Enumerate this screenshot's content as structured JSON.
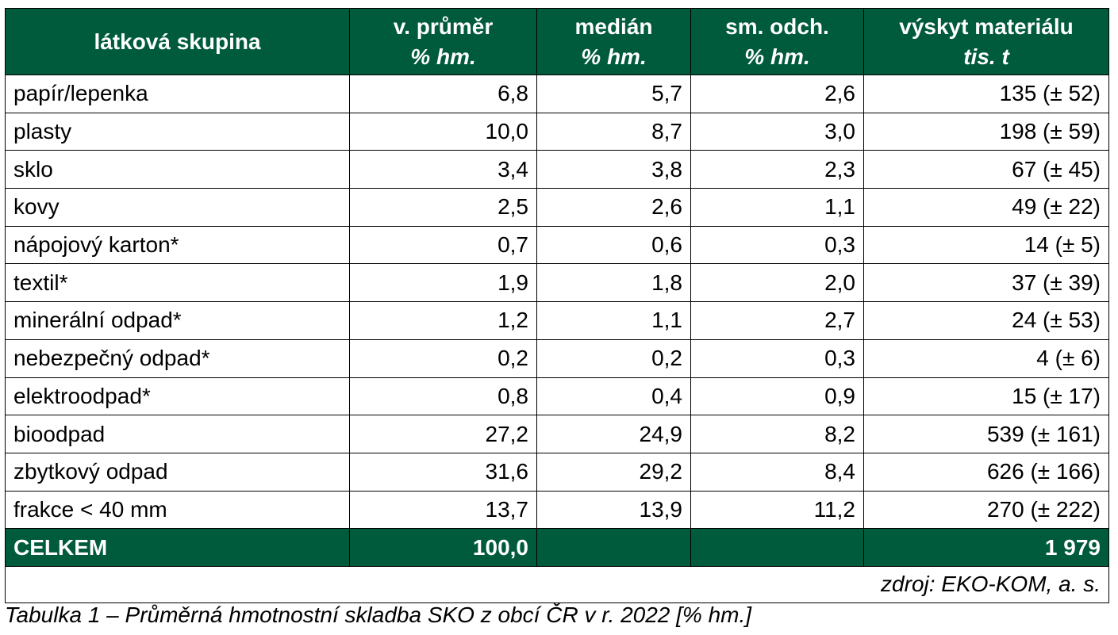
{
  "table": {
    "headers": [
      {
        "title": "látková skupina",
        "unit": ""
      },
      {
        "title": "v. průměr",
        "unit": "% hm."
      },
      {
        "title": "medián",
        "unit": "% hm."
      },
      {
        "title": "sm. odch.",
        "unit": "% hm."
      },
      {
        "title": "výskyt materiálu",
        "unit": "tis. t"
      }
    ],
    "rows": [
      [
        "papír/lepenka",
        "6,8",
        "5,7",
        "2,6",
        "135 (± 52)"
      ],
      [
        "plasty",
        "10,0",
        "8,7",
        "3,0",
        "198 (± 59)"
      ],
      [
        "sklo",
        "3,4",
        "3,8",
        "2,3",
        "67 (± 45)"
      ],
      [
        "kovy",
        "2,5",
        "2,6",
        "1,1",
        "49 (± 22)"
      ],
      [
        "nápojový karton*",
        "0,7",
        "0,6",
        "0,3",
        "14 (± 5)"
      ],
      [
        "textil*",
        "1,9",
        "1,8",
        "2,0",
        "37 (± 39)"
      ],
      [
        "minerální odpad*",
        "1,2",
        "1,1",
        "2,7",
        "24 (± 53)"
      ],
      [
        "nebezpečný odpad*",
        "0,2",
        "0,2",
        "0,3",
        "4 (± 6)"
      ],
      [
        "elektroodpad*",
        "0,8",
        "0,4",
        "0,9",
        "15 (± 17)"
      ],
      [
        "bioodpad",
        "27,2",
        "24,9",
        "8,2",
        "539 (± 161)"
      ],
      [
        "zbytkový odpad",
        "31,6",
        "29,2",
        "8,4",
        "626 (± 166)"
      ],
      [
        "frakce < 40 mm",
        "13,7",
        "13,9",
        "11,2",
        "270 (± 222)"
      ]
    ],
    "total": [
      "CELKEM",
      "100,0",
      "",
      "",
      "1 979"
    ],
    "source": "zdroj: EKO-KOM, a. s."
  },
  "caption": "Tabulka 1 – Průměrná hmotnostní skladba SKO z obcí ČR v r. 2022 [% hm.]",
  "colors": {
    "header_background": "#005a3c",
    "header_text": "#ffffff",
    "border": "#000000"
  }
}
